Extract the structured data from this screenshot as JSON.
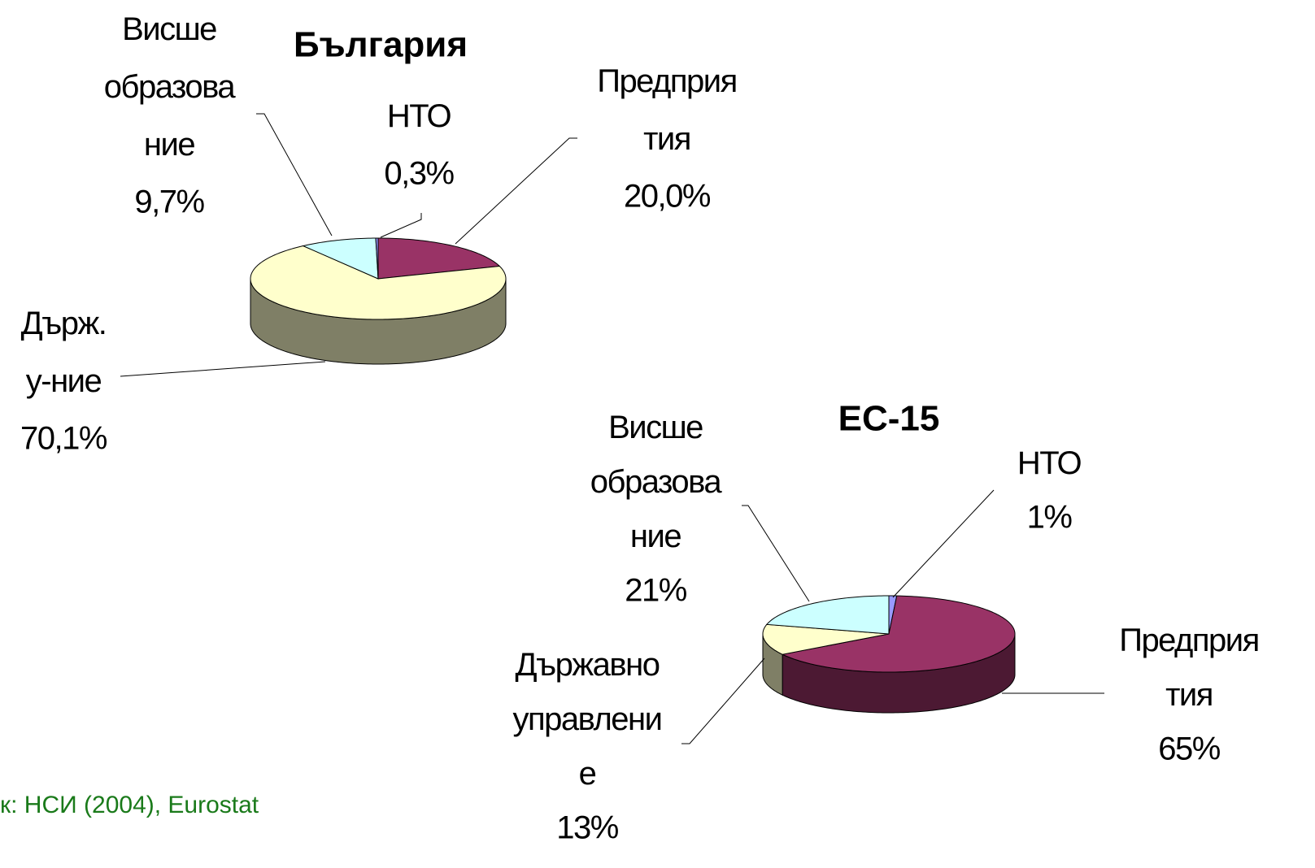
{
  "chart_data": [
    {
      "type": "pie",
      "title": "България",
      "categories": [
        "Предприятия",
        "Държ. у-ние",
        "Висше образование",
        "НТО"
      ],
      "values": [
        20.0,
        70.1,
        9.7,
        0.3
      ],
      "value_labels": [
        "20,0%",
        "70,1%",
        "9,7%",
        "0,3%"
      ],
      "colors": [
        "#993366",
        "#ffffcc",
        "#ccffff",
        "#9999ff"
      ]
    },
    {
      "type": "pie",
      "title": "ЕС-15",
      "categories": [
        "НТО",
        "Предприятия",
        "Държавно управление",
        "Висше образование"
      ],
      "values": [
        1,
        65,
        13,
        21
      ],
      "value_labels": [
        "1%",
        "65%",
        "13%",
        "21%"
      ],
      "colors": [
        "#9999ff",
        "#993366",
        "#ffffcc",
        "#ccffff"
      ],
      "source": "к: НСИ (2004), Eurostat"
    }
  ]
}
